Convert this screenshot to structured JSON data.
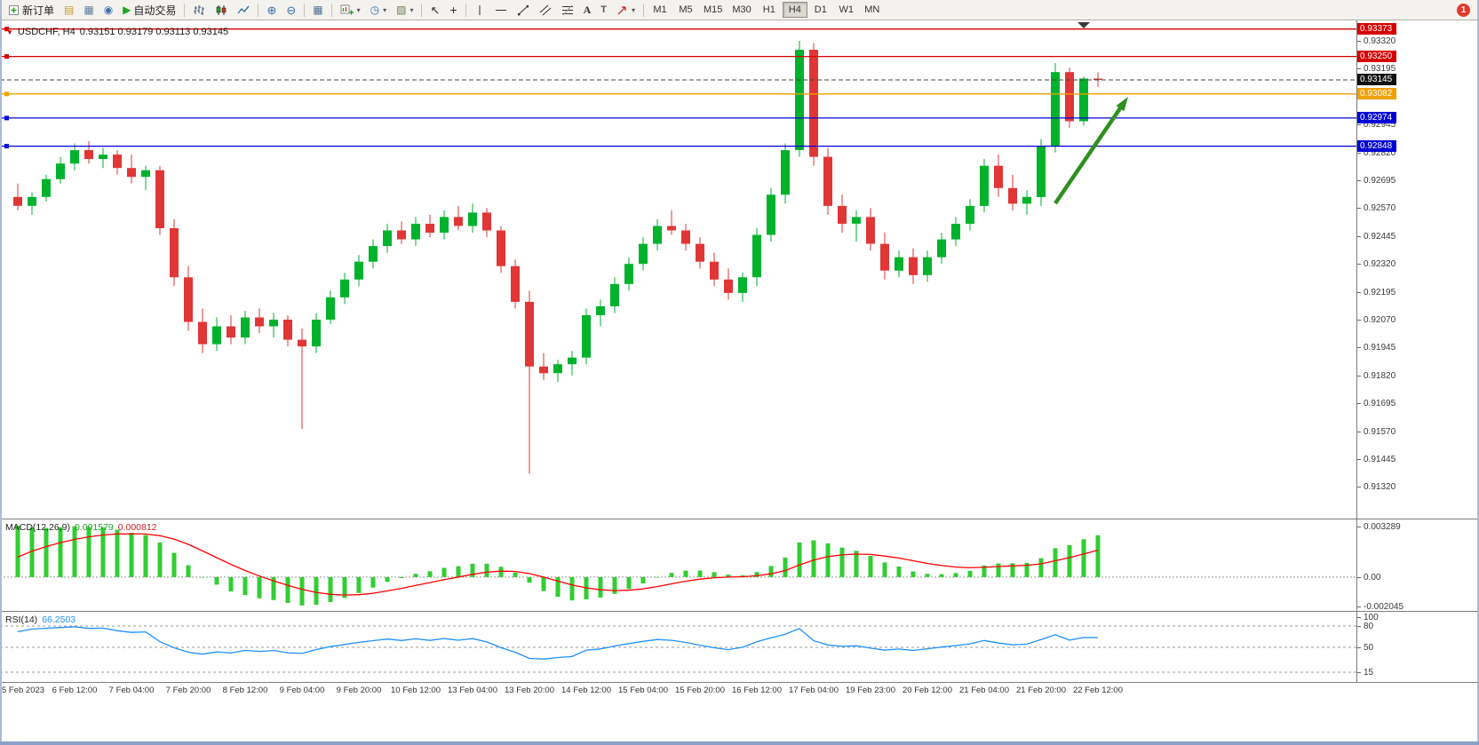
{
  "toolbar": {
    "new_order_label": "新订单",
    "auto_trading_label": "自动交易",
    "timeframes": [
      "M1",
      "M5",
      "M15",
      "M30",
      "H1",
      "H4",
      "D1",
      "W1",
      "MN"
    ],
    "active_timeframe": "H4",
    "notification_badge": "1"
  },
  "chart": {
    "symbol_label": "USDCHF, H4",
    "ohlc_label": "0.93151 0.93179 0.93113 0.93145",
    "current_price": "0.93145",
    "price_ticks": [
      "0.93320",
      "0.93195",
      "0.93070",
      "0.92945",
      "0.92820",
      "0.92695",
      "0.92570",
      "0.92445",
      "0.92320",
      "0.92195",
      "0.92070",
      "0.91945",
      "0.91820",
      "0.91695",
      "0.91570",
      "0.91445",
      "0.91320"
    ],
    "hlines": [
      {
        "price": 0.93373,
        "label": "0.93373",
        "color": "#d60000"
      },
      {
        "price": 0.9325,
        "label": "0.93250",
        "color": "#d60000"
      },
      {
        "price": 0.93082,
        "label": "0.93082",
        "color": "#f0a000"
      },
      {
        "price": 0.92974,
        "label": "0.92974",
        "color": "#0000d6"
      },
      {
        "price": 0.92848,
        "label": "0.92848",
        "color": "#0000d6"
      }
    ],
    "time_labels": [
      "5 Feb 2023",
      "6 Feb 12:00",
      "7 Feb 04:00",
      "7 Feb 20:00",
      "8 Feb 12:00",
      "9 Feb 04:00",
      "9 Feb 20:00",
      "10 Feb 12:00",
      "13 Feb 04:00",
      "13 Feb 20:00",
      "14 Feb 12:00",
      "15 Feb 04:00",
      "15 Feb 20:00",
      "16 Feb 12:00",
      "17 Feb 04:00",
      "19 Feb 23:00",
      "20 Feb 12:00",
      "21 Feb 04:00",
      "21 Feb 20:00",
      "22 Feb 12:00"
    ]
  },
  "macd_panel": {
    "name": "MACD(12,26,9)",
    "value_main": "0.001579",
    "value_signal": "0.000812",
    "ticks": [
      "0.003289",
      "0.00",
      "-0.002045"
    ]
  },
  "rsi_panel": {
    "name": "RSI(14)",
    "value": "66.2503",
    "ticks": [
      "100",
      "80",
      "50",
      "15"
    ],
    "levels": [
      80,
      50,
      15
    ]
  },
  "chart_data": {
    "type": "candlestick",
    "symbol": "USDCHF",
    "timeframe": "H4",
    "ohlc_current": {
      "open": 0.93151,
      "high": 0.93179,
      "low": 0.93113,
      "close": 0.93145
    },
    "price_range_visible": [
      0.9132,
      0.93373
    ],
    "indicators": [
      {
        "name": "MACD",
        "params": [
          12,
          26,
          9
        ],
        "main": 0.001579,
        "signal": 0.000812
      },
      {
        "name": "RSI",
        "params": [
          14
        ],
        "value": 66.2503
      }
    ],
    "annotations": {
      "trend_arrow": {
        "direction": "up",
        "color": "#2f8f1f"
      }
    },
    "candles": [
      [
        0.9262,
        0.9268,
        0.9256,
        0.9258
      ],
      [
        0.9258,
        0.9264,
        0.9254,
        0.9262
      ],
      [
        0.9262,
        0.9272,
        0.926,
        0.927
      ],
      [
        0.927,
        0.928,
        0.9268,
        0.9277
      ],
      [
        0.9277,
        0.9286,
        0.9274,
        0.9283
      ],
      [
        0.9283,
        0.9287,
        0.9277,
        0.9279
      ],
      [
        0.9279,
        0.9284,
        0.9275,
        0.9281
      ],
      [
        0.9281,
        0.9283,
        0.9272,
        0.9275
      ],
      [
        0.9275,
        0.9281,
        0.9268,
        0.9271
      ],
      [
        0.9271,
        0.9276,
        0.9265,
        0.9274
      ],
      [
        0.9274,
        0.9276,
        0.9245,
        0.9248
      ],
      [
        0.9248,
        0.9252,
        0.9222,
        0.9226
      ],
      [
        0.9226,
        0.9231,
        0.9202,
        0.9206
      ],
      [
        0.9206,
        0.9212,
        0.9192,
        0.9196
      ],
      [
        0.9196,
        0.9208,
        0.9193,
        0.9204
      ],
      [
        0.9204,
        0.9209,
        0.9196,
        0.9199
      ],
      [
        0.9199,
        0.9211,
        0.9196,
        0.9208
      ],
      [
        0.9208,
        0.9212,
        0.9201,
        0.9204
      ],
      [
        0.9204,
        0.921,
        0.9199,
        0.9207
      ],
      [
        0.9207,
        0.9209,
        0.9195,
        0.9198
      ],
      [
        0.9198,
        0.9203,
        0.9158,
        0.9195
      ],
      [
        0.9195,
        0.921,
        0.9192,
        0.9207
      ],
      [
        0.9207,
        0.922,
        0.9205,
        0.9217
      ],
      [
        0.9217,
        0.9228,
        0.9214,
        0.9225
      ],
      [
        0.9225,
        0.9236,
        0.9222,
        0.9233
      ],
      [
        0.9233,
        0.9243,
        0.923,
        0.924
      ],
      [
        0.924,
        0.925,
        0.9237,
        0.9247
      ],
      [
        0.9247,
        0.9251,
        0.9241,
        0.9243
      ],
      [
        0.9243,
        0.9253,
        0.924,
        0.925
      ],
      [
        0.925,
        0.9254,
        0.9244,
        0.9246
      ],
      [
        0.9246,
        0.9256,
        0.9243,
        0.9253
      ],
      [
        0.9253,
        0.9258,
        0.9247,
        0.9249
      ],
      [
        0.9249,
        0.9259,
        0.9246,
        0.9255
      ],
      [
        0.9255,
        0.9257,
        0.9244,
        0.9247
      ],
      [
        0.9247,
        0.9249,
        0.9228,
        0.9231
      ],
      [
        0.9231,
        0.9234,
        0.9212,
        0.9215
      ],
      [
        0.9215,
        0.922,
        0.9138,
        0.9186
      ],
      [
        0.9186,
        0.9192,
        0.918,
        0.9183
      ],
      [
        0.9183,
        0.9189,
        0.9179,
        0.9187
      ],
      [
        0.9187,
        0.9193,
        0.9182,
        0.919
      ],
      [
        0.919,
        0.9212,
        0.9187,
        0.9209
      ],
      [
        0.9209,
        0.9216,
        0.9204,
        0.9213
      ],
      [
        0.9213,
        0.9226,
        0.921,
        0.9223
      ],
      [
        0.9223,
        0.9235,
        0.922,
        0.9232
      ],
      [
        0.9232,
        0.9244,
        0.9229,
        0.9241
      ],
      [
        0.9241,
        0.9252,
        0.9238,
        0.9249
      ],
      [
        0.9249,
        0.9256,
        0.9245,
        0.9247
      ],
      [
        0.9247,
        0.925,
        0.9238,
        0.9241
      ],
      [
        0.9241,
        0.9244,
        0.923,
        0.9233
      ],
      [
        0.9233,
        0.9237,
        0.9222,
        0.9225
      ],
      [
        0.9225,
        0.923,
        0.9216,
        0.9219
      ],
      [
        0.9219,
        0.9228,
        0.9215,
        0.9226
      ],
      [
        0.9226,
        0.9248,
        0.9222,
        0.9245
      ],
      [
        0.9245,
        0.9266,
        0.9242,
        0.9263
      ],
      [
        0.9263,
        0.9286,
        0.9259,
        0.9283
      ],
      [
        0.9283,
        0.9332,
        0.928,
        0.9328
      ],
      [
        0.9328,
        0.9331,
        0.9276,
        0.928
      ],
      [
        0.928,
        0.9284,
        0.9254,
        0.9258
      ],
      [
        0.9258,
        0.9263,
        0.9246,
        0.925
      ],
      [
        0.925,
        0.9256,
        0.9242,
        0.9253
      ],
      [
        0.9253,
        0.9257,
        0.9238,
        0.9241
      ],
      [
        0.9241,
        0.9246,
        0.9225,
        0.9229
      ],
      [
        0.9229,
        0.9238,
        0.9226,
        0.9235
      ],
      [
        0.9235,
        0.9239,
        0.9223,
        0.9227
      ],
      [
        0.9227,
        0.9238,
        0.9224,
        0.9235
      ],
      [
        0.9235,
        0.9246,
        0.9232,
        0.9243
      ],
      [
        0.9243,
        0.9253,
        0.924,
        0.925
      ],
      [
        0.925,
        0.9261,
        0.9247,
        0.9258
      ],
      [
        0.9258,
        0.9279,
        0.9255,
        0.9276
      ],
      [
        0.9276,
        0.9281,
        0.9262,
        0.9266
      ],
      [
        0.9266,
        0.9272,
        0.9256,
        0.9259
      ],
      [
        0.9259,
        0.9265,
        0.9254,
        0.9262
      ],
      [
        0.9262,
        0.9288,
        0.9258,
        0.9285
      ],
      [
        0.9285,
        0.9322,
        0.9282,
        0.9318
      ],
      [
        0.9318,
        0.932,
        0.9293,
        0.9296
      ],
      [
        0.9296,
        0.9316,
        0.9294,
        0.93151
      ],
      [
        0.93151,
        0.93179,
        0.93113,
        0.93145
      ]
    ]
  },
  "colors": {
    "bull": "#00b22c",
    "bear": "#e03636",
    "macd_bar": "#32cd32",
    "macd_signal": "#ff0000",
    "rsi_line": "#1e90ff",
    "bid_tag": "#111111",
    "arrow": "#2f8f1f"
  }
}
